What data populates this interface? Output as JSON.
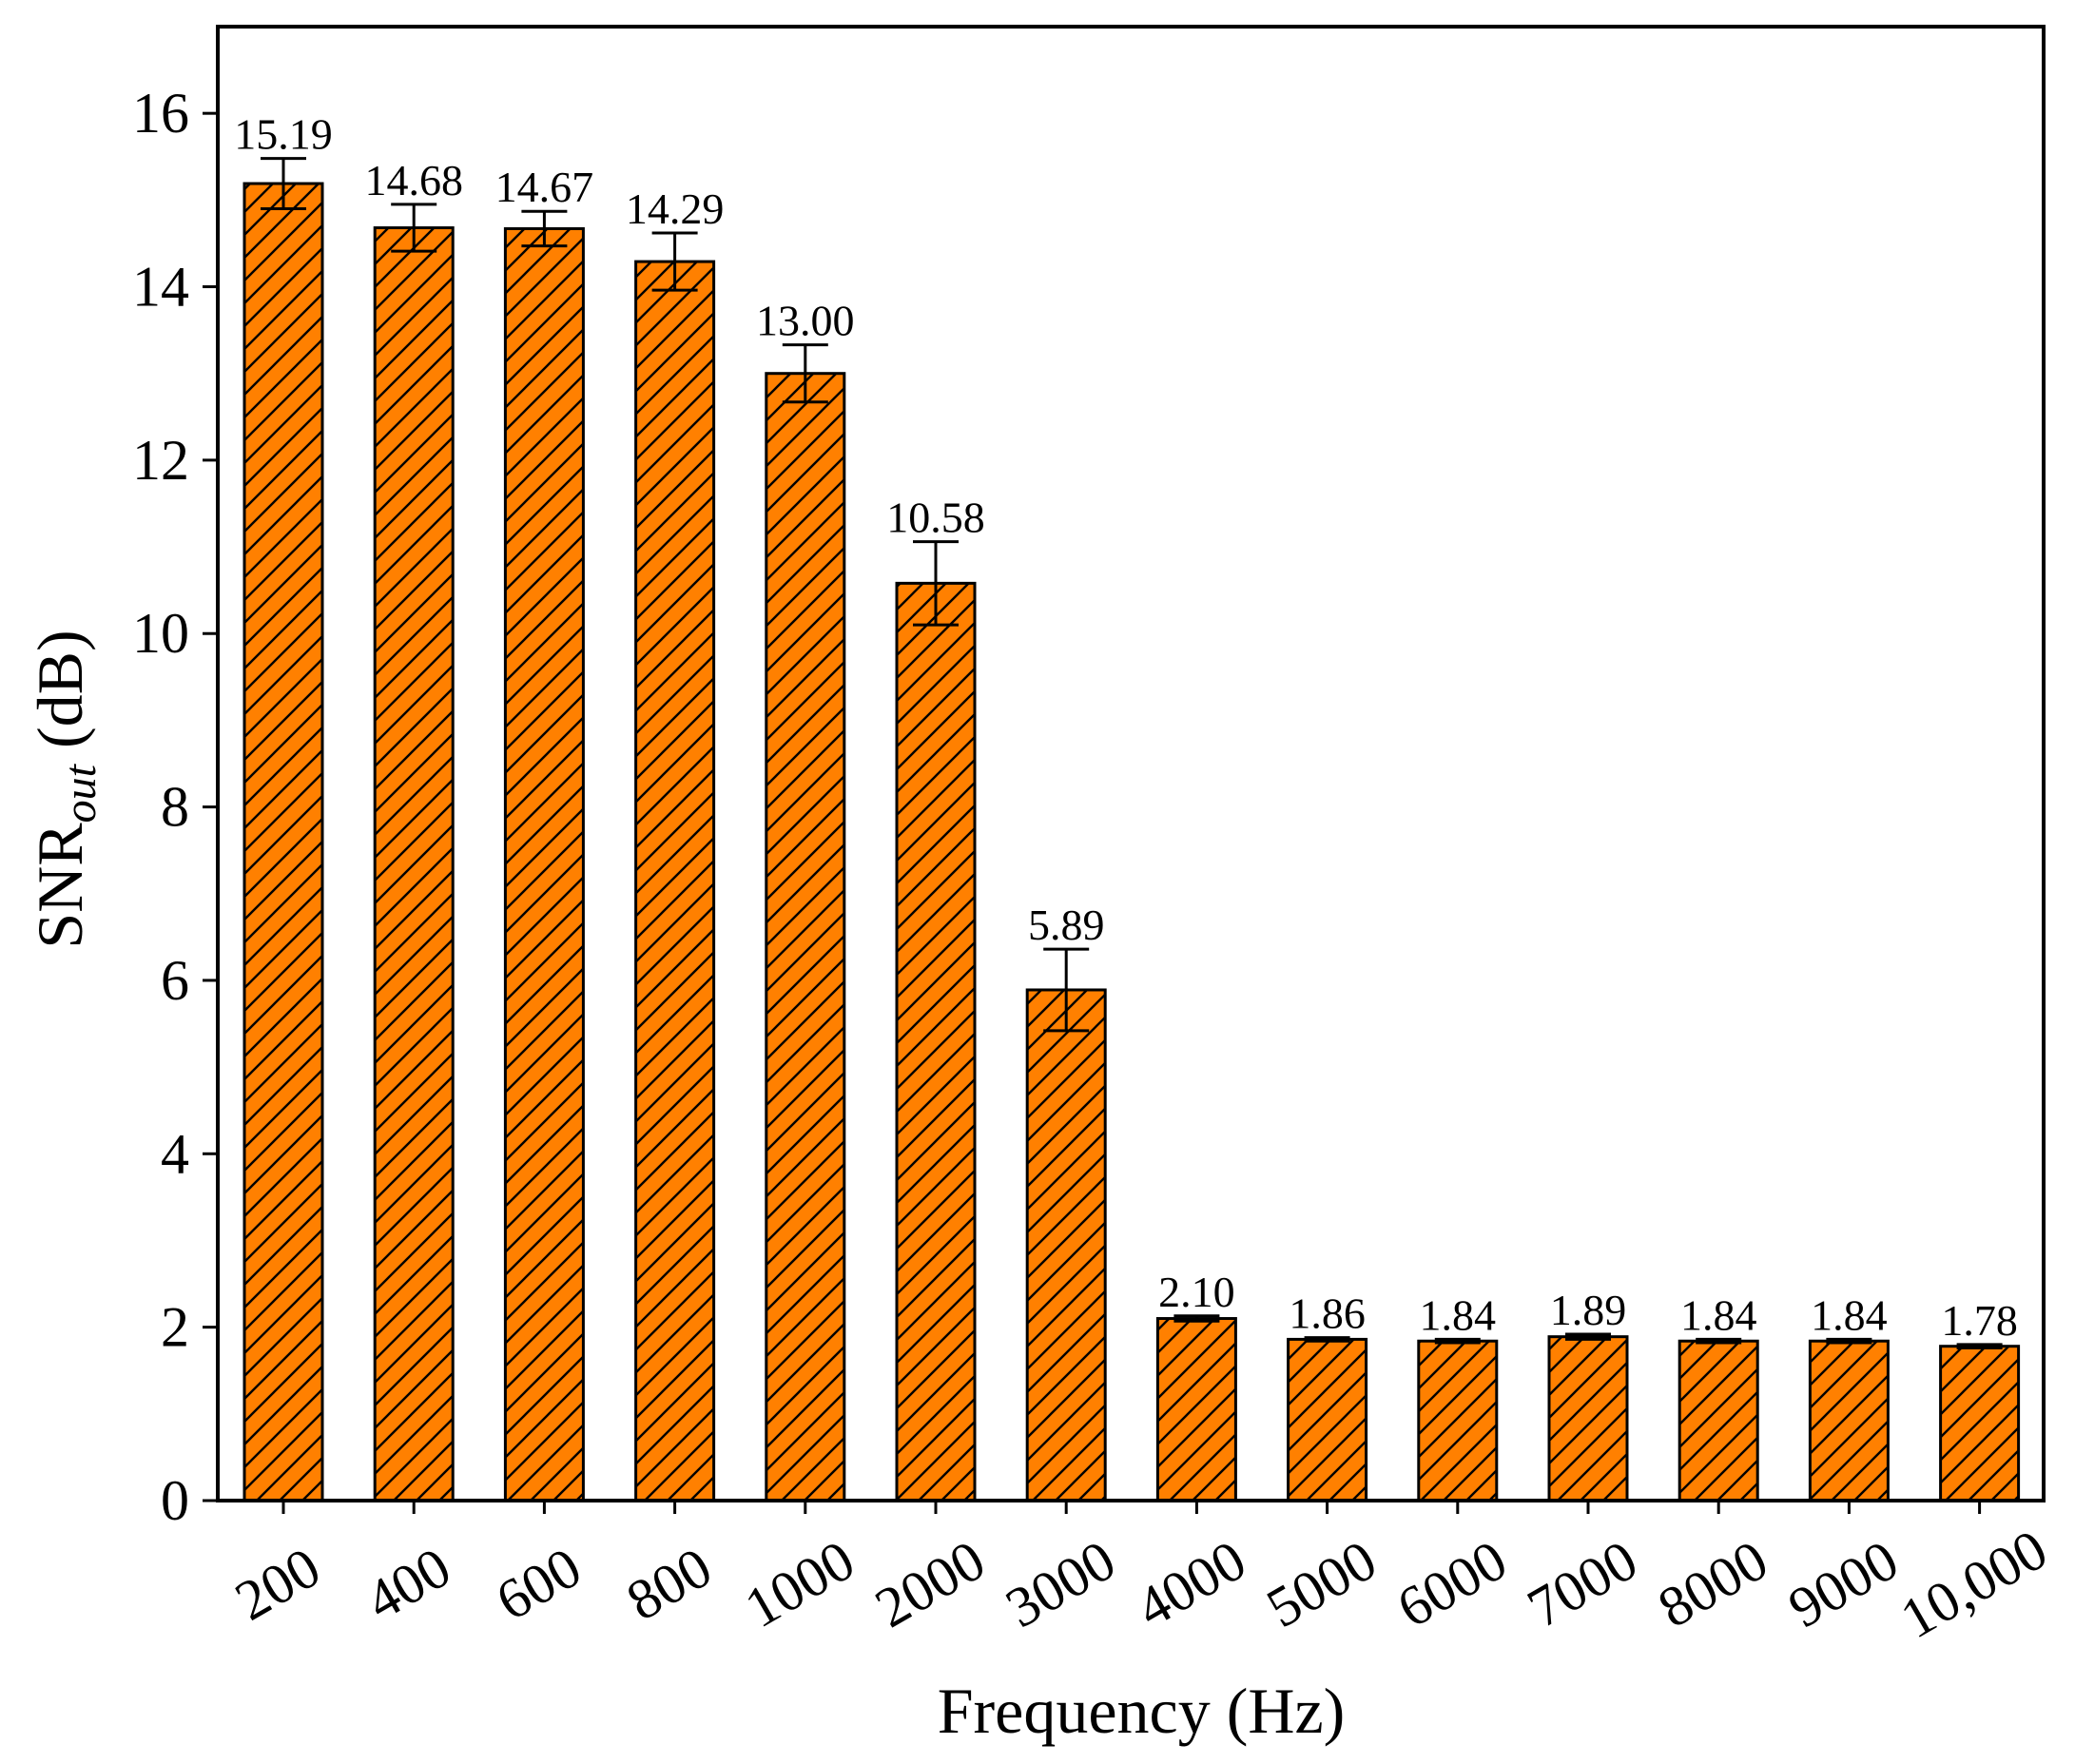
{
  "chart_data": {
    "type": "bar",
    "categories": [
      "200",
      "400",
      "600",
      "800",
      "1000",
      "2000",
      "3000",
      "4000",
      "5000",
      "6000",
      "7000",
      "8000",
      "9000",
      "10,000"
    ],
    "values": [
      15.19,
      14.68,
      14.67,
      14.29,
      13.0,
      10.58,
      5.89,
      2.1,
      1.86,
      1.84,
      1.89,
      1.84,
      1.84,
      1.78
    ],
    "value_labels": [
      "15.19",
      "14.68",
      "14.67",
      "14.29",
      "13.00",
      "10.58",
      "5.89",
      "2.10",
      "1.86",
      "1.84",
      "1.89",
      "1.84",
      "1.84",
      "1.78"
    ],
    "errors": [
      0.29,
      0.27,
      0.2,
      0.33,
      0.33,
      0.48,
      0.47,
      0.03,
      0.02,
      0.02,
      0.03,
      0.02,
      0.02,
      0.02
    ],
    "xlabel": "Frequency (Hz)",
    "ylabel_main": "SNR",
    "ylabel_sub": "out",
    "ylabel_unit": " (dB)",
    "ylim": [
      0,
      17
    ],
    "yticks": [
      0,
      2,
      4,
      6,
      8,
      10,
      12,
      14,
      16
    ],
    "grid": false,
    "bar_color": "#FF8000",
    "hatch": "diagonal"
  }
}
